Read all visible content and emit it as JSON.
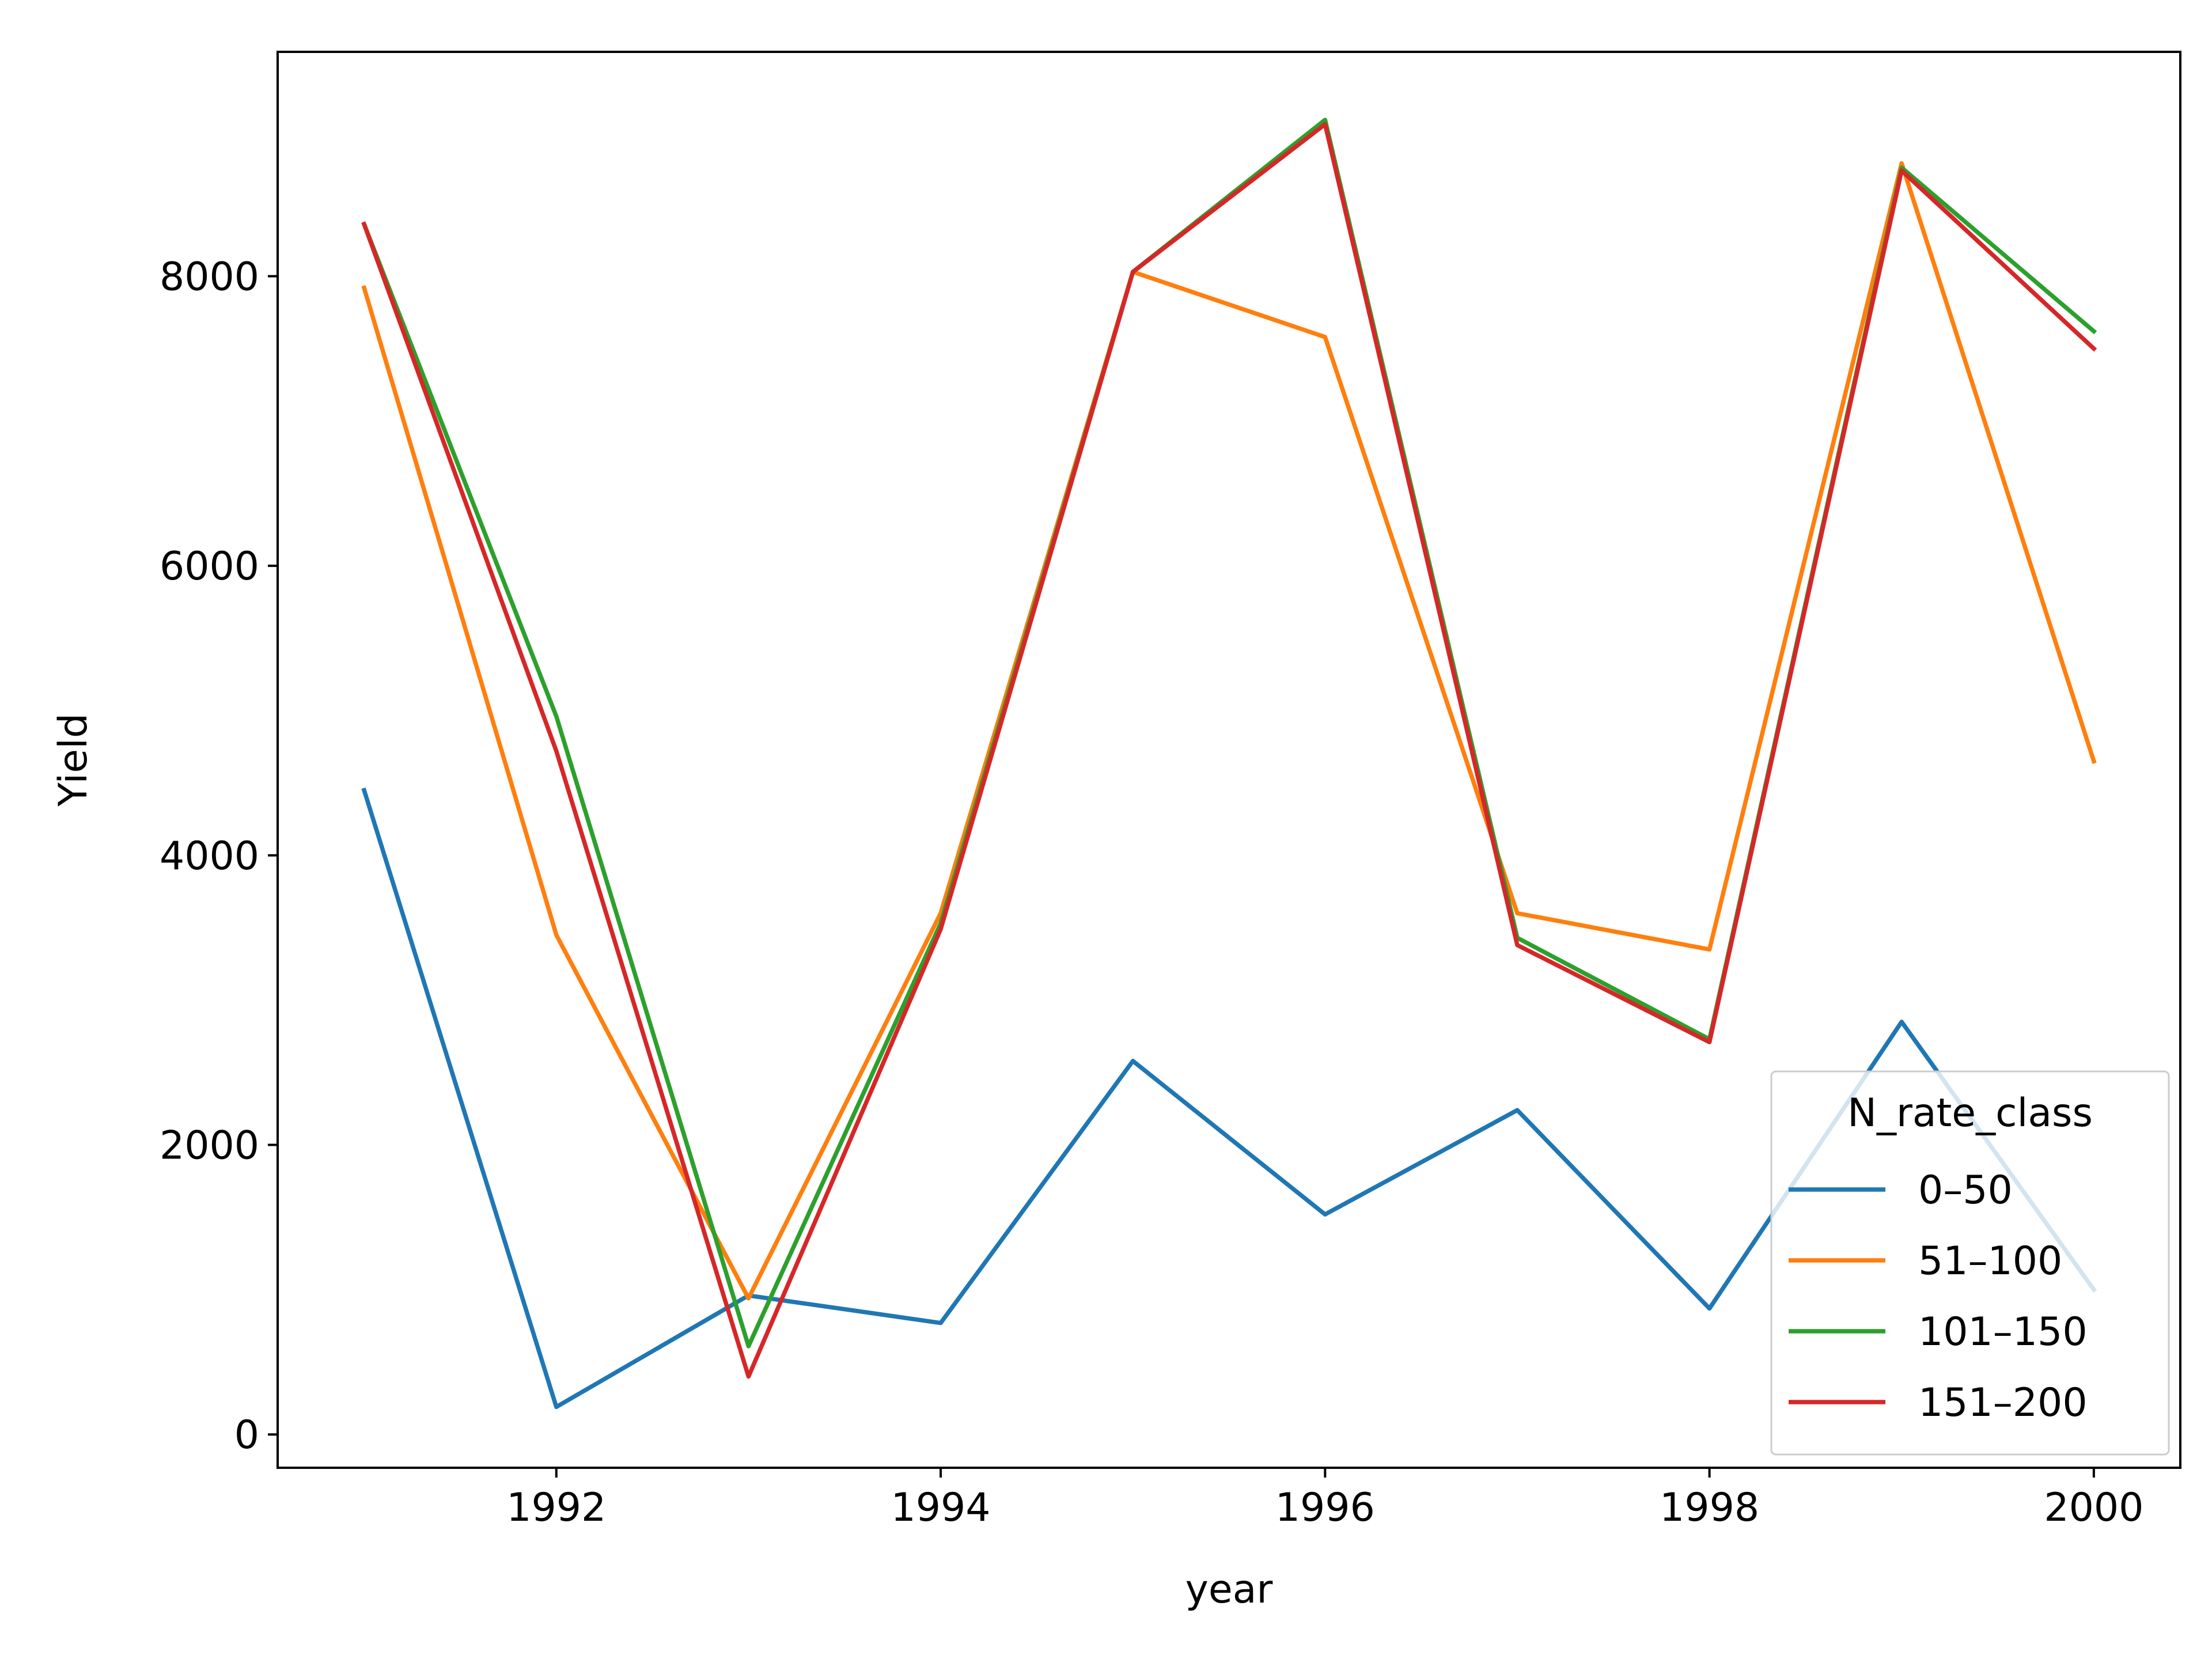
{
  "chart_data": {
    "type": "line",
    "xlabel": "year",
    "ylabel": "Yield",
    "x": [
      1991,
      1992,
      1993,
      1994,
      1995,
      1996,
      1997,
      1998,
      1999,
      2000
    ],
    "xlim": [
      1990.55,
      2000.45
    ],
    "ylim": [
      -230,
      9550
    ],
    "x_ticks": [
      1992,
      1994,
      1996,
      1998,
      2000
    ],
    "y_ticks": [
      0,
      2000,
      4000,
      6000,
      8000
    ],
    "x_tick_labels": [
      "1992",
      "1994",
      "1996",
      "1998",
      "2000"
    ],
    "y_tick_labels": [
      "0",
      "2000",
      "4000",
      "6000",
      "8000"
    ],
    "grid": false,
    "legend": {
      "title": "N_rate_class",
      "position": "lower right"
    },
    "series": [
      {
        "name": "0–50",
        "color": "#1f77b4",
        "values": [
          4450,
          190,
          960,
          770,
          2580,
          1520,
          2240,
          870,
          2850,
          1000
        ]
      },
      {
        "name": "51–100",
        "color": "#ff7f0e",
        "values": [
          7920,
          3450,
          940,
          3600,
          8030,
          7580,
          3600,
          3350,
          8780,
          4650
        ]
      },
      {
        "name": "101–150",
        "color": "#2ca02c",
        "values": [
          8360,
          4960,
          610,
          3530,
          8030,
          9080,
          3430,
          2730,
          8750,
          7620
        ]
      },
      {
        "name": "151–200",
        "color": "#d62728",
        "values": [
          8360,
          4720,
          400,
          3490,
          8030,
          9050,
          3380,
          2710,
          8730,
          7500
        ]
      }
    ]
  }
}
